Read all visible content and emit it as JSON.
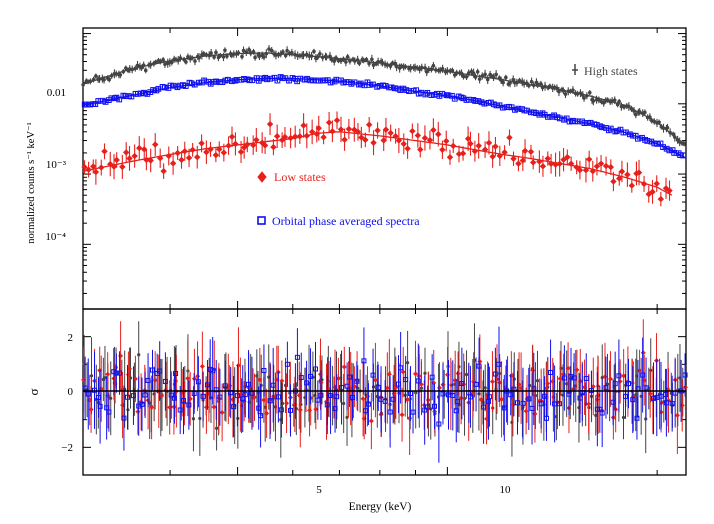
{
  "chart_data": {
    "type": "scatter",
    "xscale": "log",
    "x_tick_labels": [
      "5",
      "10"
    ],
    "xlabel": "Energy (keV)",
    "upper_panel": {
      "yscale": "log",
      "ylabel": "normalized counts s⁻¹ keV⁻¹",
      "y_tick_labels": [
        "0.01",
        "10⁻³",
        "10⁻⁴"
      ],
      "xlim": [
        3,
        22
      ],
      "ylim": [
        1.2e-05,
        0.12
      ],
      "legend": [
        {
          "label": "High states",
          "color": "#444444",
          "marker": "errorbar"
        },
        {
          "label": "Low states",
          "color": "#e8201c",
          "marker": "filled-diamond"
        },
        {
          "label": "Orbital phase averaged spectra",
          "color": "#1010ee",
          "marker": "open-square"
        }
      ],
      "series": [
        {
          "name": "High states",
          "color": "#444444",
          "x": [
            3.0,
            3.5,
            4.0,
            4.5,
            5.0,
            5.5,
            6.0,
            6.5,
            7.0,
            8.0,
            9.0,
            10.0,
            11.0,
            12.0,
            13.0,
            14.0,
            16.0,
            18.0,
            20.0,
            22.0
          ],
          "y": [
            0.019,
            0.031,
            0.041,
            0.048,
            0.052,
            0.053,
            0.05,
            0.047,
            0.044,
            0.038,
            0.033,
            0.029,
            0.025,
            0.022,
            0.019,
            0.017,
            0.013,
            0.0095,
            0.0055,
            0.0025
          ]
        },
        {
          "name": "Orbital phase averaged spectra",
          "color": "#1010ee",
          "x": [
            3.0,
            3.5,
            4.0,
            4.5,
            5.0,
            5.5,
            6.0,
            6.5,
            7.0,
            8.0,
            9.0,
            10.0,
            11.0,
            12.0,
            13.0,
            14.0,
            16.0,
            18.0,
            20.0,
            22.0
          ],
          "y": [
            0.0095,
            0.013,
            0.017,
            0.02,
            0.022,
            0.023,
            0.023,
            0.022,
            0.021,
            0.018,
            0.015,
            0.013,
            0.011,
            0.0092,
            0.0079,
            0.0068,
            0.0052,
            0.0039,
            0.0027,
            0.0017
          ]
        },
        {
          "name": "Low states",
          "color": "#e8201c",
          "x": [
            3.0,
            3.5,
            4.0,
            4.5,
            5.0,
            5.5,
            6.0,
            6.5,
            7.0,
            8.0,
            9.0,
            10.0,
            11.0,
            12.0,
            13.0,
            14.0,
            16.0,
            18.0,
            20.0,
            21.0
          ],
          "y": [
            0.0011,
            0.0015,
            0.0019,
            0.0023,
            0.0026,
            0.0029,
            0.0032,
            0.0038,
            0.004,
            0.0035,
            0.003,
            0.0026,
            0.0022,
            0.0019,
            0.0017,
            0.0015,
            0.0012,
            0.0009,
            0.00065,
            0.0005
          ]
        }
      ]
    },
    "lower_panel": {
      "ylabel": "σ",
      "y_tick_labels": [
        "2",
        "0",
        "−2"
      ],
      "ylim": [
        -3,
        3
      ],
      "zero_line": true,
      "residual_range": [
        -2.5,
        2.5
      ]
    }
  }
}
